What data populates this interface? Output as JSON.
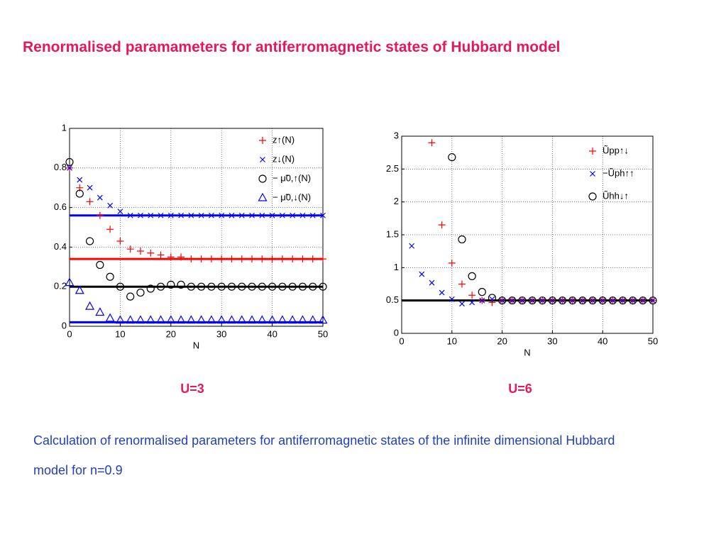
{
  "title": "Renormalised paramameters for antiferromagnetic states of Hubbard model",
  "description": "Calculation of renormalised parameters for antiferromagnetic states of the infinite dimensional Hubbard model for n=0.9",
  "chart_data": [
    {
      "type": "scatter",
      "caption": "U=3",
      "x_label": "N",
      "xlim": [
        0,
        50
      ],
      "xticks": [
        0,
        10,
        20,
        30,
        40,
        50
      ],
      "ylim": [
        0,
        1
      ],
      "yticks": [
        0,
        0.2,
        0.4,
        0.6,
        0.8,
        1
      ],
      "grid": true,
      "legend": "upper right",
      "x": [
        0,
        2,
        4,
        6,
        8,
        10,
        12,
        14,
        16,
        18,
        20,
        22,
        24,
        26,
        28,
        30,
        32,
        34,
        36,
        38,
        40,
        42,
        44,
        46,
        48,
        50
      ],
      "series": [
        {
          "name": "z↑(N)",
          "color": "#ff0000",
          "marker": "plus",
          "values": [
            0.8,
            0.7,
            0.63,
            0.56,
            0.49,
            0.43,
            0.39,
            0.38,
            0.37,
            0.36,
            0.35,
            0.35,
            0.34,
            0.34,
            0.34,
            0.34,
            0.34,
            0.34,
            0.34,
            0.34,
            0.34,
            0.34,
            0.34,
            0.34,
            0.34,
            0.34
          ]
        },
        {
          "name": "z↓(N)",
          "color": "#0000ff",
          "marker": "x",
          "values": [
            0.8,
            0.74,
            0.7,
            0.65,
            0.61,
            0.58,
            0.56,
            0.56,
            0.56,
            0.56,
            0.56,
            0.56,
            0.56,
            0.56,
            0.56,
            0.56,
            0.56,
            0.56,
            0.56,
            0.56,
            0.56,
            0.56,
            0.56,
            0.56,
            0.56,
            0.56
          ]
        },
        {
          "name": "− μ̃0,↑(N)",
          "color": "#000000",
          "marker": "circle",
          "values": [
            0.83,
            0.67,
            0.43,
            0.31,
            0.25,
            0.2,
            0.15,
            0.17,
            0.19,
            0.2,
            0.21,
            0.21,
            0.2,
            0.2,
            0.2,
            0.2,
            0.2,
            0.2,
            0.2,
            0.2,
            0.2,
            0.2,
            0.2,
            0.2,
            0.2,
            0.2
          ]
        },
        {
          "name": "− μ̃0,↓(N)",
          "color": "#0000ff",
          "marker": "triangle",
          "values": [
            0.22,
            0.18,
            0.1,
            0.07,
            0.04,
            0.03,
            0.03,
            0.03,
            0.03,
            0.03,
            0.03,
            0.03,
            0.03,
            0.03,
            0.03,
            0.03,
            0.03,
            0.03,
            0.03,
            0.03,
            0.03,
            0.03,
            0.03,
            0.03,
            0.03,
            0.03
          ]
        }
      ],
      "reference_lines": [
        {
          "value": 0.56,
          "color": "#0000ff"
        },
        {
          "value": 0.34,
          "color": "#ff0000"
        },
        {
          "value": 0.2,
          "color": "#000000"
        },
        {
          "value": 0.02,
          "color": "#0000ff"
        }
      ]
    },
    {
      "type": "scatter",
      "caption": "U=6",
      "x_label": "N",
      "xlim": [
        0,
        50
      ],
      "xticks": [
        0,
        10,
        20,
        30,
        40,
        50
      ],
      "ylim": [
        0,
        3
      ],
      "yticks": [
        0,
        0.5,
        1,
        1.5,
        2,
        2.5,
        3
      ],
      "grid": true,
      "legend": "upper right",
      "x": [
        2,
        4,
        6,
        8,
        10,
        12,
        14,
        16,
        18,
        20,
        22,
        24,
        26,
        28,
        30,
        32,
        34,
        36,
        38,
        40,
        42,
        44,
        46,
        48,
        50
      ],
      "series": [
        {
          "name": "Ũpp↑↓",
          "color": "#ff0000",
          "marker": "plus",
          "values": [
            null,
            null,
            2.9,
            1.65,
            1.07,
            0.75,
            0.58,
            0.5,
            0.47,
            0.5,
            0.5,
            0.5,
            0.5,
            0.5,
            0.5,
            0.5,
            0.5,
            0.5,
            0.5,
            0.5,
            0.5,
            0.5,
            0.5,
            0.5,
            0.5
          ]
        },
        {
          "name": "−Ũph↑↑",
          "color": "#0000ff",
          "marker": "x",
          "values": [
            1.33,
            0.9,
            0.77,
            0.62,
            0.52,
            0.45,
            0.47,
            0.5,
            0.52,
            0.5,
            0.5,
            0.5,
            0.5,
            0.5,
            0.5,
            0.5,
            0.5,
            0.5,
            0.5,
            0.5,
            0.5,
            0.5,
            0.5,
            0.5,
            0.5
          ]
        },
        {
          "name": "Ũhh↓↑",
          "color": "#000000",
          "marker": "circle",
          "values": [
            null,
            null,
            null,
            null,
            2.68,
            1.43,
            0.87,
            0.63,
            0.54,
            0.5,
            0.5,
            0.5,
            0.5,
            0.5,
            0.5,
            0.5,
            0.5,
            0.5,
            0.5,
            0.5,
            0.5,
            0.5,
            0.5,
            0.5,
            0.5
          ]
        }
      ],
      "reference_lines": [
        {
          "value": 0.5,
          "color": "#000000"
        }
      ]
    }
  ]
}
